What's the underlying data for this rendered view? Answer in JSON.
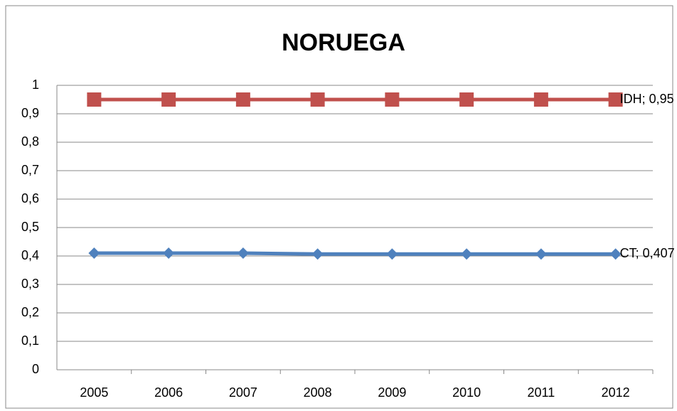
{
  "chart_data": {
    "type": "line",
    "title": "NORUEGA",
    "categories": [
      "2005",
      "2006",
      "2007",
      "2008",
      "2009",
      "2010",
      "2011",
      "2012"
    ],
    "series": [
      {
        "name": "IDH",
        "color": "#c0504d",
        "marker": "square",
        "values": [
          0.95,
          0.95,
          0.95,
          0.95,
          0.95,
          0.95,
          0.95,
          0.95
        ],
        "value_labels": [
          null,
          null,
          null,
          null,
          null,
          null,
          null,
          "IDH; 0,95"
        ]
      },
      {
        "name": "CT",
        "color": "#4f81bd",
        "marker": "diamond",
        "values": [
          0.41,
          0.41,
          0.41,
          0.407,
          0.407,
          0.407,
          0.407,
          0.407
        ],
        "value_labels": [
          null,
          null,
          null,
          null,
          null,
          null,
          null,
          "CT; 0,407"
        ]
      }
    ],
    "ylim": [
      0,
      1
    ],
    "yticks": [
      0,
      {
        "value": 0.1,
        "label": "0,1"
      },
      {
        "value": 0.2,
        "label": "0,2"
      },
      {
        "value": 0.3,
        "label": "0,3"
      },
      {
        "value": 0.4,
        "label": "0,4"
      },
      {
        "value": 0.5,
        "label": "0,5"
      },
      {
        "value": 0.6,
        "label": "0,6"
      },
      {
        "value": 0.7,
        "label": "0,7"
      },
      {
        "value": 0.8,
        "label": "0,8"
      },
      {
        "value": 0.9,
        "label": "0,9"
      },
      1
    ],
    "grid": true
  }
}
